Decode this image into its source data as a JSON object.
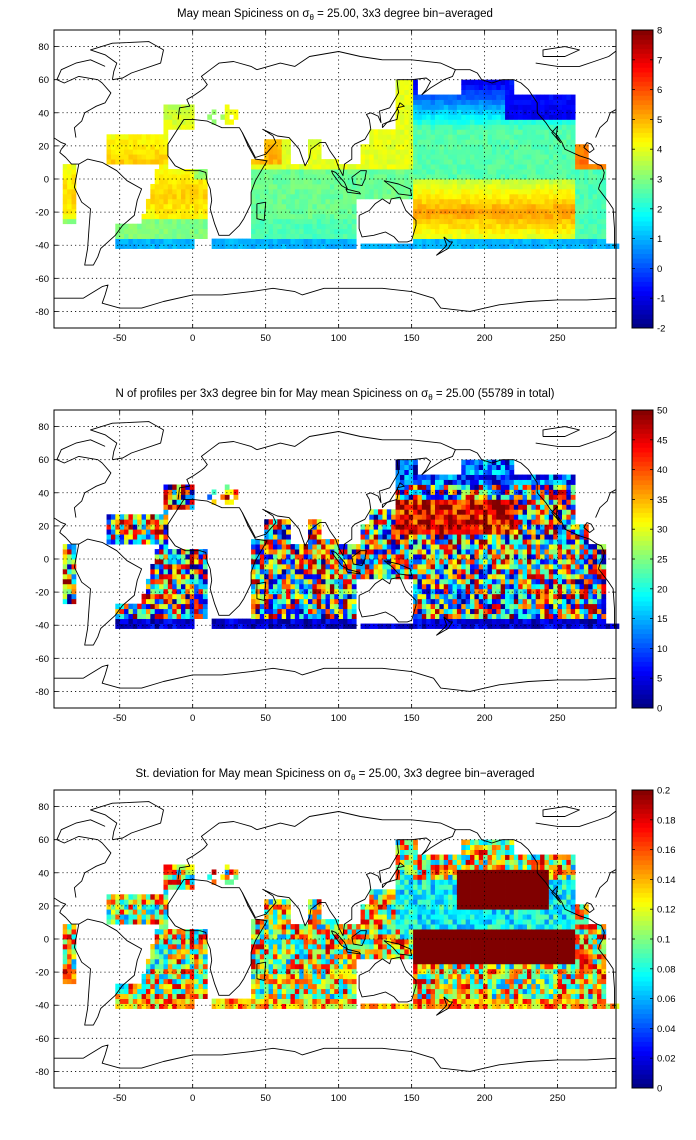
{
  "chart_data": [
    {
      "type": "heatmap",
      "title_parts": {
        "pre": "May mean Spiciness on ",
        "sigma": "σ",
        "sub": "θ",
        "post": " = 25.00, 3x3 degree bin−averaged"
      },
      "xticks": [
        "-50",
        "0",
        "50",
        "100",
        "150",
        "200",
        "250"
      ],
      "xtick_values": [
        -50,
        0,
        50,
        100,
        150,
        200,
        250
      ],
      "yticks": [
        "80",
        "60",
        "40",
        "20",
        "0",
        "-20",
        "-40",
        "-60",
        "-80"
      ],
      "ytick_values": [
        80,
        60,
        40,
        20,
        0,
        -20,
        -40,
        -60,
        -80
      ],
      "xlim": [
        -95,
        290
      ],
      "ylim": [
        -90,
        90
      ],
      "grid": true,
      "colorbar": {
        "min": -2,
        "max": 8,
        "ticks": [
          "8",
          "7",
          "6",
          "5",
          "4",
          "3",
          "2",
          "1",
          "0",
          "-1",
          "-2"
        ],
        "tick_values": [
          8,
          7,
          6,
          5,
          4,
          3,
          2,
          1,
          0,
          -1,
          -2
        ]
      },
      "field": "spice"
    },
    {
      "type": "heatmap",
      "title_parts": {
        "pre": "N of profiles per 3x3 degree bin for May mean Spiciness on ",
        "sigma": "σ",
        "sub": "θ",
        "post": " = 25.00 (55789 in total)"
      },
      "xticks": [
        "-50",
        "0",
        "50",
        "100",
        "150",
        "200",
        "250"
      ],
      "xtick_values": [
        -50,
        0,
        50,
        100,
        150,
        200,
        250
      ],
      "yticks": [
        "80",
        "60",
        "40",
        "20",
        "0",
        "-20",
        "-40",
        "-60",
        "-80"
      ],
      "ytick_values": [
        80,
        60,
        40,
        20,
        0,
        -20,
        -40,
        -60,
        -80
      ],
      "xlim": [
        -95,
        290
      ],
      "ylim": [
        -90,
        90
      ],
      "grid": true,
      "colorbar": {
        "min": 0,
        "max": 50,
        "ticks": [
          "50",
          "45",
          "40",
          "35",
          "30",
          "25",
          "20",
          "15",
          "10",
          "5",
          "0"
        ],
        "tick_values": [
          50,
          45,
          40,
          35,
          30,
          25,
          20,
          15,
          10,
          5,
          0
        ]
      },
      "field": "count"
    },
    {
      "type": "heatmap",
      "title_parts": {
        "pre": "St. deviation for May mean Spiciness on ",
        "sigma": "σ",
        "sub": "θ",
        "post": " = 25.00, 3x3 degree bin−averaged"
      },
      "xticks": [
        "-50",
        "0",
        "50",
        "100",
        "150",
        "200",
        "250"
      ],
      "xtick_values": [
        -50,
        0,
        50,
        100,
        150,
        200,
        250
      ],
      "yticks": [
        "80",
        "60",
        "40",
        "20",
        "0",
        "-20",
        "-40",
        "-60",
        "-80"
      ],
      "ytick_values": [
        80,
        60,
        40,
        20,
        0,
        -20,
        -40,
        -60,
        -80
      ],
      "xlim": [
        -95,
        290
      ],
      "ylim": [
        -90,
        90
      ],
      "grid": true,
      "colorbar": {
        "min": 0,
        "max": 0.2,
        "ticks": [
          "0.2",
          "0.18",
          "0.16",
          "0.14",
          "0.12",
          "0.1",
          "0.08",
          "0.06",
          "0.04",
          "0.02",
          "0"
        ],
        "tick_values": [
          0.2,
          0.18,
          0.16,
          0.14,
          0.12,
          0.1,
          0.08,
          0.06,
          0.04,
          0.02,
          0
        ]
      },
      "field": "std"
    }
  ]
}
